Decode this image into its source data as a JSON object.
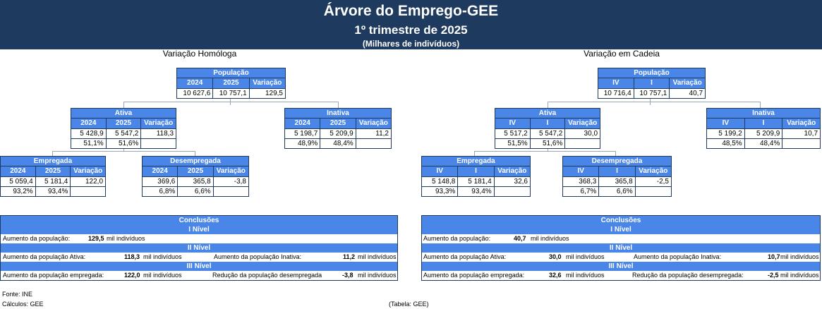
{
  "title": "Árvore do Emprego-GEE",
  "subtitle": "1º trimestre de 2025",
  "unit_note": "(Milhares de indivíduos)",
  "left": {
    "section": "Variação Homóloga",
    "cols": [
      "2024",
      "2025",
      "Variação"
    ],
    "populacao": {
      "label": "População",
      "v": [
        "10 627,6",
        "10 757,1",
        "129,5"
      ]
    },
    "ativa": {
      "label": "Ativa",
      "v": [
        "5 428,9",
        "5 547,2",
        "118,3"
      ],
      "p": [
        "51,1%",
        "51,6%"
      ]
    },
    "inativa": {
      "label": "Inativa",
      "v": [
        "5 198,7",
        "5 209,9",
        "11,2"
      ],
      "p": [
        "48,9%",
        "48,4%"
      ]
    },
    "empregada": {
      "label": "Empregada",
      "v": [
        "5 059,4",
        "5 181,4",
        "122,0"
      ],
      "p": [
        "93,2%",
        "93,4%"
      ]
    },
    "desempregada": {
      "label": "Desempregada",
      "v": [
        "369,6",
        "365,8",
        "-3,8"
      ],
      "p": [
        "6,8%",
        "6,6%"
      ]
    },
    "concl": {
      "title": "Conclusões",
      "n1": "I Nível",
      "l1": {
        "label": "Aumento da  população:",
        "val": "129,5",
        "unit": "mil indivíduos"
      },
      "n2": "II Nível",
      "l2a": {
        "label": "Aumento da  população Ativa:",
        "val": "118,3",
        "unit": "mil indivíduos"
      },
      "l2b": {
        "label": "Aumento da população Inativa:",
        "val": "11,2",
        "unit": "mil indivíduos"
      },
      "n3": "III Nível",
      "l3a": {
        "label": "Aumento da população empregada:",
        "val": "122,0",
        "unit": "mil indivíduos"
      },
      "l3b": {
        "label": "Redução da população desempregada",
        "val": "-3,8",
        "unit": "mil indivíduos"
      }
    }
  },
  "right": {
    "section": "Variação em Cadeia",
    "cols": [
      "IV",
      "I",
      "Variação"
    ],
    "populacao": {
      "label": "População",
      "v": [
        "10 716,4",
        "10 757,1",
        "40,7"
      ]
    },
    "ativa": {
      "label": "Ativa",
      "v": [
        "5 517,2",
        "5 547,2",
        "30,0"
      ],
      "p": [
        "51,5%",
        "51,6%"
      ]
    },
    "inativa": {
      "label": "Inativa",
      "v": [
        "5 199,2",
        "5 209,9",
        "10,7"
      ],
      "p": [
        "48,5%",
        "48,4%"
      ]
    },
    "empregada": {
      "label": "Empregada",
      "v": [
        "5 148,8",
        "5 181,4",
        "32,6"
      ],
      "p": [
        "93,3%",
        "93,4%"
      ]
    },
    "desempregada": {
      "label": "Desempregada",
      "v": [
        "368,3",
        "365,8",
        "-2,5"
      ],
      "p": [
        "6,7%",
        "6,6%"
      ]
    },
    "concl": {
      "title": "Conclusões",
      "n1": "I Nível",
      "l1": {
        "label": "Aumento da    população:",
        "val": "40,7",
        "unit": "mil indivíduos"
      },
      "n2": "II Nível",
      "l2a": {
        "label": "Aumento da    população Ativa:",
        "val": "30,0",
        "unit": "mil indivíduos"
      },
      "l2b": {
        "label": "Aumento da  população Inativa:",
        "val": "10,7",
        "unit": "mil indivíduos"
      },
      "n3": "III Nível",
      "l3a": {
        "label": "Aumento da    população empregada:",
        "val": "32,6",
        "unit": "mil indivíduos"
      },
      "l3b": {
        "label": "Redução  da  população desempregada:",
        "val": "-2,5",
        "unit": "mil indivíduos"
      }
    }
  },
  "footer": {
    "fonte": "Fonte: INE",
    "calculos": "Cálculos: GEE",
    "tabela": "(Tabela: GEE)"
  }
}
